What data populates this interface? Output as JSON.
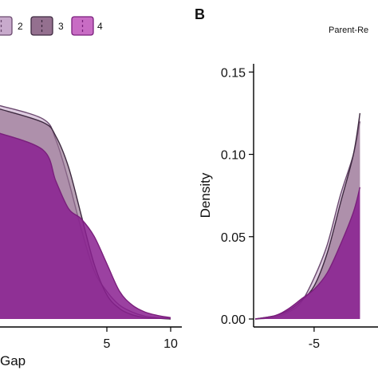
{
  "figure": {
    "panels": [
      {
        "id": "A",
        "letter": "",
        "title": "",
        "xlabel": "Gap",
        "ylabel": "",
        "legend": {
          "items": [
            {
              "label": "2",
              "fill": "#c8aacc",
              "stroke": "#6b4a6f"
            },
            {
              "label": "3",
              "fill": "#94708f",
              "stroke": "#3e2a40"
            },
            {
              "label": "4",
              "fill": "#c86cc4",
              "stroke": "#7a1f7c"
            }
          ]
        }
      },
      {
        "id": "B",
        "letter": "B",
        "title": "Parent-Re",
        "xlabel": "",
        "ylabel": "Density"
      }
    ]
  },
  "chart_data": [
    {
      "type": "area",
      "panel": "A",
      "title": "",
      "xlabel": "Gap",
      "ylabel": "",
      "xlim": [
        -3.5,
        11
      ],
      "ylim": [
        0,
        0.37
      ],
      "x_ticks": [
        5,
        10
      ],
      "x_tick_labels": [
        "5",
        "10"
      ],
      "grid": false,
      "legend_position": "top",
      "series": [
        {
          "name": "2",
          "fill": "#c8aacc",
          "stroke": "#6b4a6f",
          "opacity": 0.6,
          "points": [
            [
              -3.5,
              0.31
            ],
            [
              0,
              0.29
            ],
            [
              1,
              0.26
            ],
            [
              2,
              0.2
            ],
            [
              3,
              0.13
            ],
            [
              4,
              0.07
            ],
            [
              5,
              0.04
            ],
            [
              6,
              0.02
            ],
            [
              7,
              0.01
            ],
            [
              8,
              0.004
            ],
            [
              9,
              0.002
            ],
            [
              10,
              0.001
            ]
          ]
        },
        {
          "name": "3",
          "fill": "#94708f",
          "stroke": "#3e2a40",
          "opacity": 0.65,
          "points": [
            [
              -3.5,
              0.305
            ],
            [
              0,
              0.285
            ],
            [
              1,
              0.265
            ],
            [
              2,
              0.22
            ],
            [
              3,
              0.15
            ],
            [
              4,
              0.08
            ],
            [
              5,
              0.035
            ],
            [
              6,
              0.015
            ],
            [
              7,
              0.006
            ],
            [
              8,
              0.002
            ],
            [
              9,
              0.001
            ],
            [
              10,
              0.0
            ]
          ]
        },
        {
          "name": "4",
          "fill": "#8a2090",
          "stroke": "#7a1f7c",
          "opacity": 0.85,
          "points": [
            [
              -3.5,
              0.27
            ],
            [
              0,
              0.245
            ],
            [
              1,
              0.2
            ],
            [
              2,
              0.16
            ],
            [
              3,
              0.145
            ],
            [
              4,
              0.12
            ],
            [
              5,
              0.08
            ],
            [
              6,
              0.04
            ],
            [
              7,
              0.02
            ],
            [
              8,
              0.01
            ],
            [
              9,
              0.005
            ],
            [
              10,
              0.002
            ]
          ]
        }
      ]
    },
    {
      "type": "area",
      "panel": "B",
      "title": "Parent-Re",
      "xlabel": "",
      "ylabel": "Density",
      "xlim": [
        -9.5,
        0
      ],
      "ylim": [
        0,
        0.155
      ],
      "x_ticks": [
        -5
      ],
      "x_tick_labels": [
        "-5"
      ],
      "y_ticks": [
        0,
        0.05,
        0.1,
        0.15
      ],
      "y_tick_labels": [
        "0.00",
        "0.05",
        "0.10",
        "0.15"
      ],
      "grid": false,
      "series": [
        {
          "name": "2",
          "fill": "#c8aacc",
          "stroke": "#6b4a6f",
          "opacity": 0.6,
          "points": [
            [
              -9.5,
              0.0
            ],
            [
              -8,
              0.001
            ],
            [
              -7,
              0.004
            ],
            [
              -6,
              0.01
            ],
            [
              -5,
              0.025
            ],
            [
              -4,
              0.045
            ],
            [
              -3,
              0.075
            ],
            [
              -2,
              0.1
            ],
            [
              -1.5,
              0.12
            ]
          ]
        },
        {
          "name": "3",
          "fill": "#94708f",
          "stroke": "#3e2a40",
          "opacity": 0.65,
          "points": [
            [
              -9.5,
              0.0
            ],
            [
              -8,
              0.002
            ],
            [
              -7,
              0.005
            ],
            [
              -6,
              0.011
            ],
            [
              -5,
              0.02
            ],
            [
              -4,
              0.04
            ],
            [
              -3,
              0.07
            ],
            [
              -2,
              0.1
            ],
            [
              -1.5,
              0.125
            ]
          ]
        },
        {
          "name": "4",
          "fill": "#8a2090",
          "stroke": "#7a1f7c",
          "opacity": 0.85,
          "points": [
            [
              -9.5,
              0.0
            ],
            [
              -8,
              0.002
            ],
            [
              -7,
              0.006
            ],
            [
              -6,
              0.012
            ],
            [
              -5,
              0.018
            ],
            [
              -4,
              0.028
            ],
            [
              -3,
              0.045
            ],
            [
              -2,
              0.065
            ],
            [
              -1.5,
              0.08
            ]
          ]
        }
      ]
    }
  ]
}
